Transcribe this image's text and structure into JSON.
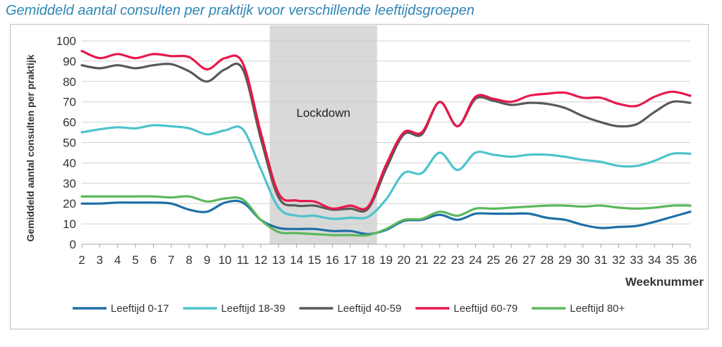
{
  "chart_data": {
    "type": "line",
    "title": "Gemiddeld aantal consulten per praktijk voor verschillende leeftijdsgroepen",
    "xlabel": "Weeknummer",
    "ylabel": "Gemiddeld aantal consulten per praktijk",
    "x": [
      2,
      3,
      4,
      5,
      6,
      7,
      8,
      9,
      10,
      11,
      12,
      13,
      14,
      15,
      16,
      17,
      18,
      19,
      20,
      21,
      22,
      23,
      24,
      25,
      26,
      27,
      28,
      29,
      30,
      31,
      32,
      33,
      34,
      35,
      36
    ],
    "xlim": [
      2,
      36
    ],
    "ylim": [
      0,
      100
    ],
    "yticks": [
      0,
      10,
      20,
      30,
      40,
      50,
      60,
      70,
      80,
      90,
      100
    ],
    "grid": "horizontal",
    "legend": "bottom",
    "annotation": {
      "label": "Lockdown",
      "x_start": 12.5,
      "x_end": 18.5
    },
    "series": [
      {
        "name": "Leeftijd 0-17",
        "color": "#1f6fa6",
        "values": [
          20,
          20,
          20.5,
          20.5,
          20.5,
          20,
          17,
          16,
          20.5,
          20.5,
          12,
          8,
          7.5,
          7.5,
          6.5,
          6.5,
          5,
          7,
          11.5,
          12,
          14.5,
          12,
          15,
          15,
          15,
          15,
          13,
          12,
          9.5,
          8,
          8.5,
          9,
          11,
          13.5,
          16
        ]
      },
      {
        "name": "Leeftijd 18-39",
        "color": "#4cc3cc",
        "values": [
          55,
          56.5,
          57.5,
          57,
          58.5,
          58,
          57,
          54,
          56,
          56.5,
          37,
          18,
          14,
          14,
          12.5,
          13,
          13.5,
          22,
          35,
          35,
          45,
          36.5,
          45,
          44,
          43,
          44,
          44,
          43,
          41.5,
          40.5,
          38.5,
          38.5,
          41,
          44.5,
          44.5
        ]
      },
      {
        "name": "Leeftijd 40-59",
        "color": "#595959",
        "values": [
          88,
          86.5,
          88,
          86.5,
          88,
          88.5,
          85,
          80,
          86,
          86,
          52,
          23,
          19,
          19,
          17,
          17.5,
          17.5,
          37,
          54,
          54,
          70,
          58,
          71.5,
          70.5,
          68.5,
          69.5,
          69,
          67,
          63,
          60,
          58,
          59,
          65,
          70,
          69.5
        ]
      },
      {
        "name": "Leeftijd 60-79",
        "color": "#e8174a",
        "values": [
          95,
          91.5,
          93.5,
          91.5,
          93.5,
          92.5,
          92,
          86,
          91.5,
          89,
          55,
          25,
          21.5,
          21,
          17.5,
          19,
          18.5,
          39,
          55,
          55,
          70,
          58,
          72.5,
          71.5,
          70,
          73,
          74,
          74.5,
          72,
          72,
          69,
          68,
          72.5,
          75,
          73
        ]
      },
      {
        "name": "Leeftijd 80+",
        "color": "#5cb85c",
        "values": [
          23.5,
          23.5,
          23.5,
          23.5,
          23.5,
          23,
          23.5,
          21,
          22.5,
          22,
          12,
          6,
          5.5,
          5,
          4.5,
          4.5,
          4.5,
          7.5,
          12,
          12.5,
          16,
          14,
          17.5,
          17.5,
          18,
          18.5,
          19,
          19,
          18.5,
          19,
          18,
          17.5,
          18,
          19,
          19
        ]
      }
    ]
  }
}
